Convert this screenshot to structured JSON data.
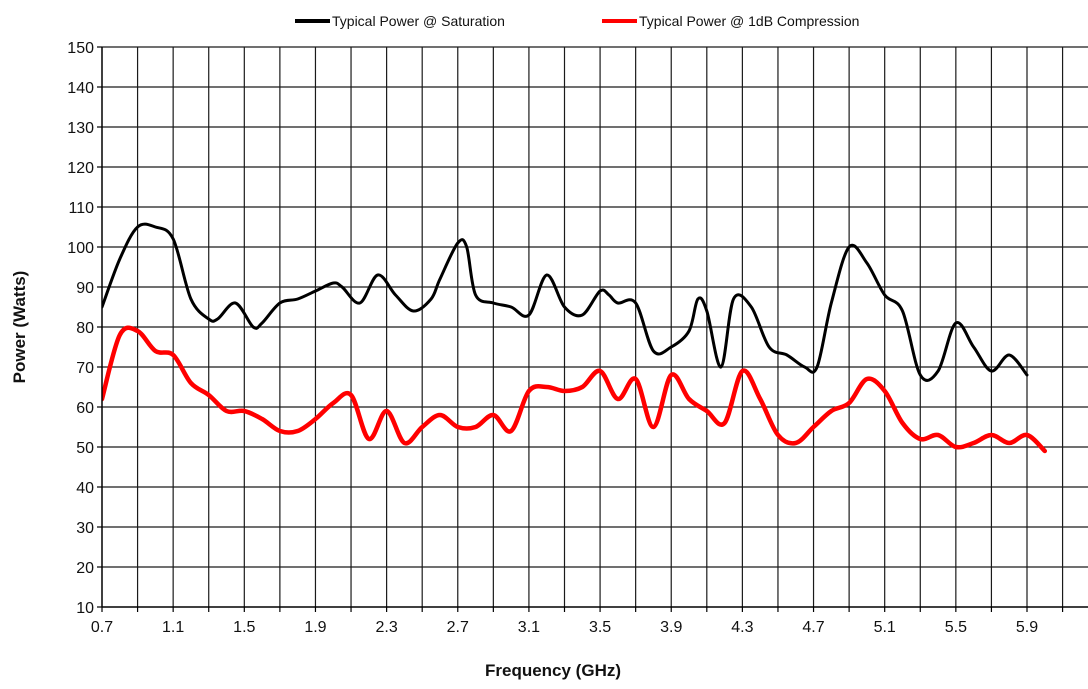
{
  "chart_data": {
    "type": "line",
    "title": "",
    "xlabel": "Frequency (GHz)",
    "ylabel": "Power (Watts)",
    "xlim": [
      0.7,
      5.9
    ],
    "ylim": [
      10,
      150
    ],
    "grid": true,
    "legend_position": "top",
    "x_ticks": [
      "0.7",
      "1.1",
      "1.5",
      "1.9",
      "2.3",
      "2.7",
      "3.1",
      "3.5",
      "3.9",
      "4.3",
      "4.7",
      "5.1",
      "5.5",
      "5.9"
    ],
    "y_ticks": [
      "10",
      "20",
      "30",
      "40",
      "50",
      "60",
      "70",
      "80",
      "90",
      "100",
      "110",
      "120",
      "130",
      "140",
      "150"
    ],
    "series": [
      {
        "name": "Typical Power @ Saturation",
        "color": "#000000",
        "points": [
          [
            0.7,
            85
          ],
          [
            0.8,
            97
          ],
          [
            0.9,
            105
          ],
          [
            1.0,
            105
          ],
          [
            1.1,
            102
          ],
          [
            1.2,
            87
          ],
          [
            1.3,
            82
          ],
          [
            1.35,
            82
          ],
          [
            1.45,
            86
          ],
          [
            1.55,
            80
          ],
          [
            1.6,
            81
          ],
          [
            1.7,
            86
          ],
          [
            1.8,
            87
          ],
          [
            1.9,
            89
          ],
          [
            2.0,
            91
          ],
          [
            2.05,
            90
          ],
          [
            2.15,
            86
          ],
          [
            2.25,
            93
          ],
          [
            2.35,
            88
          ],
          [
            2.45,
            84
          ],
          [
            2.55,
            87
          ],
          [
            2.6,
            92
          ],
          [
            2.7,
            101
          ],
          [
            2.75,
            100
          ],
          [
            2.8,
            88
          ],
          [
            2.9,
            86
          ],
          [
            3.0,
            85
          ],
          [
            3.1,
            83
          ],
          [
            3.2,
            93
          ],
          [
            3.3,
            85
          ],
          [
            3.4,
            83
          ],
          [
            3.5,
            89
          ],
          [
            3.55,
            88
          ],
          [
            3.6,
            86
          ],
          [
            3.7,
            86
          ],
          [
            3.8,
            74
          ],
          [
            3.9,
            75
          ],
          [
            4.0,
            79
          ],
          [
            4.05,
            87
          ],
          [
            4.1,
            84
          ],
          [
            4.18,
            70
          ],
          [
            4.25,
            87
          ],
          [
            4.35,
            85
          ],
          [
            4.45,
            75
          ],
          [
            4.55,
            73
          ],
          [
            4.65,
            70
          ],
          [
            4.72,
            70
          ],
          [
            4.8,
            86
          ],
          [
            4.9,
            100
          ],
          [
            5.0,
            96
          ],
          [
            5.1,
            88
          ],
          [
            5.2,
            84
          ],
          [
            5.3,
            68
          ],
          [
            5.4,
            69
          ],
          [
            5.5,
            81
          ],
          [
            5.6,
            75
          ],
          [
            5.7,
            69
          ],
          [
            5.8,
            73
          ],
          [
            5.9,
            68
          ]
        ]
      },
      {
        "name": "Typical Power @ 1dB Compression",
        "color": "#ff0000",
        "points": [
          [
            0.7,
            62
          ],
          [
            0.8,
            78
          ],
          [
            0.9,
            79
          ],
          [
            1.0,
            74
          ],
          [
            1.1,
            73
          ],
          [
            1.2,
            66
          ],
          [
            1.3,
            63
          ],
          [
            1.4,
            59
          ],
          [
            1.5,
            59
          ],
          [
            1.6,
            57
          ],
          [
            1.7,
            54
          ],
          [
            1.8,
            54
          ],
          [
            1.9,
            57
          ],
          [
            2.0,
            61
          ],
          [
            2.1,
            63
          ],
          [
            2.2,
            52
          ],
          [
            2.3,
            59
          ],
          [
            2.4,
            51
          ],
          [
            2.5,
            55
          ],
          [
            2.6,
            58
          ],
          [
            2.7,
            55
          ],
          [
            2.8,
            55
          ],
          [
            2.9,
            58
          ],
          [
            3.0,
            54
          ],
          [
            3.1,
            64
          ],
          [
            3.2,
            65
          ],
          [
            3.3,
            64
          ],
          [
            3.4,
            65
          ],
          [
            3.5,
            69
          ],
          [
            3.6,
            62
          ],
          [
            3.7,
            67
          ],
          [
            3.8,
            55
          ],
          [
            3.9,
            68
          ],
          [
            4.0,
            62
          ],
          [
            4.1,
            59
          ],
          [
            4.2,
            56
          ],
          [
            4.3,
            69
          ],
          [
            4.4,
            62
          ],
          [
            4.5,
            53
          ],
          [
            4.6,
            51
          ],
          [
            4.7,
            55
          ],
          [
            4.8,
            59
          ],
          [
            4.9,
            61
          ],
          [
            5.0,
            67
          ],
          [
            5.1,
            64
          ],
          [
            5.2,
            56
          ],
          [
            5.3,
            52
          ],
          [
            5.4,
            53
          ],
          [
            5.5,
            50
          ],
          [
            5.6,
            51
          ],
          [
            5.7,
            53
          ],
          [
            5.8,
            51
          ],
          [
            5.9,
            53
          ],
          [
            6.0,
            49
          ]
        ]
      }
    ]
  }
}
